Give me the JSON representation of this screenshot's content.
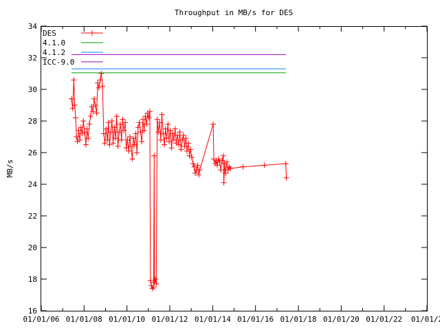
{
  "chart_data": {
    "type": "line",
    "title": "Throughput in MB/s for DES",
    "xlabel": "",
    "ylabel": "MB/s",
    "ylim": [
      16,
      34
    ],
    "xlim": [
      "2006-01-01",
      "2024-01-01"
    ],
    "y_ticks": [
      "16",
      "18",
      "20",
      "22",
      "24",
      "26",
      "28",
      "30",
      "32",
      "34"
    ],
    "x_ticks": [
      "01/01/06",
      "01/01/08",
      "01/01/10",
      "01/01/12",
      "01/01/14",
      "01/01/16",
      "01/01/18",
      "01/01/20",
      "01/01/22",
      "01/01/2"
    ],
    "legend_position": "top-left",
    "grid": false,
    "series": [
      {
        "name": "DES",
        "color": "#ff0000",
        "style": "linespoints",
        "points": [
          [
            "2007-06-01",
            29.4
          ],
          [
            "2007-06-20",
            28.8
          ],
          [
            "2007-07-10",
            30.6
          ],
          [
            "2007-07-25",
            29.0
          ],
          [
            "2007-08-10",
            28.2
          ],
          [
            "2007-08-25",
            27.0
          ],
          [
            "2007-09-10",
            26.7
          ],
          [
            "2007-10-01",
            27.4
          ],
          [
            "2007-10-20",
            26.8
          ],
          [
            "2007-11-10",
            27.6
          ],
          [
            "2007-12-01",
            27.2
          ],
          [
            "2007-12-20",
            28.0
          ],
          [
            "2008-01-10",
            27.3
          ],
          [
            "2008-02-01",
            26.5
          ],
          [
            "2008-02-20",
            27.5
          ],
          [
            "2008-03-10",
            26.9
          ],
          [
            "2008-04-01",
            27.8
          ],
          [
            "2008-04-20",
            28.3
          ],
          [
            "2008-05-10",
            28.9
          ],
          [
            "2008-06-01",
            28.6
          ],
          [
            "2008-06-20",
            29.4
          ],
          [
            "2008-07-10",
            29.0
          ],
          [
            "2008-08-01",
            28.5
          ],
          [
            "2008-08-20",
            30.4
          ],
          [
            "2008-09-10",
            30.1
          ],
          [
            "2008-10-01",
            30.6
          ],
          [
            "2008-10-20",
            31.0
          ],
          [
            "2008-11-10",
            30.2
          ],
          [
            "2008-12-01",
            27.2
          ],
          [
            "2008-12-20",
            26.6
          ],
          [
            "2009-01-10",
            27.5
          ],
          [
            "2009-02-01",
            26.8
          ],
          [
            "2009-02-20",
            27.9
          ],
          [
            "2009-03-10",
            26.5
          ],
          [
            "2009-04-01",
            27.3
          ],
          [
            "2009-04-20",
            28.0
          ],
          [
            "2009-05-10",
            26.6
          ],
          [
            "2009-06-01",
            27.6
          ],
          [
            "2009-06-20",
            26.9
          ],
          [
            "2009-07-10",
            28.3
          ],
          [
            "2009-08-01",
            26.4
          ],
          [
            "2009-08-20",
            27.3
          ],
          [
            "2009-09-10",
            27.8
          ],
          [
            "2009-10-01",
            26.8
          ],
          [
            "2009-10-20",
            28.1
          ],
          [
            "2009-11-10",
            27.4
          ],
          [
            "2009-12-01",
            27.9
          ],
          [
            "2009-12-20",
            26.3
          ],
          [
            "2010-01-10",
            26.8
          ],
          [
            "2010-02-01",
            26.1
          ],
          [
            "2010-02-20",
            27.0
          ],
          [
            "2010-03-10",
            26.4
          ],
          [
            "2010-04-01",
            25.6
          ],
          [
            "2010-04-20",
            26.9
          ],
          [
            "2010-05-10",
            26.5
          ],
          [
            "2010-06-01",
            27.2
          ],
          [
            "2010-06-20",
            26.0
          ],
          [
            "2010-07-10",
            27.6
          ],
          [
            "2010-08-01",
            27.9
          ],
          [
            "2010-08-20",
            27.3
          ],
          [
            "2010-09-10",
            26.7
          ],
          [
            "2010-10-01",
            28.1
          ],
          [
            "2010-10-20",
            27.4
          ],
          [
            "2010-11-10",
            28.3
          ],
          [
            "2010-12-01",
            27.8
          ],
          [
            "2010-12-20",
            28.5
          ],
          [
            "2011-01-10",
            28.2
          ],
          [
            "2011-01-25",
            28.6
          ],
          [
            "2011-02-05",
            17.9
          ],
          [
            "2011-02-20",
            17.6
          ],
          [
            "2011-03-10",
            17.4
          ],
          [
            "2011-04-01",
            17.5
          ],
          [
            "2011-04-10",
            25.8
          ],
          [
            "2011-04-15",
            17.8
          ],
          [
            "2011-05-01",
            18.0
          ],
          [
            "2011-05-15",
            17.7
          ],
          [
            "2011-06-01",
            28.1
          ],
          [
            "2011-06-20",
            27.3
          ],
          [
            "2011-07-10",
            27.9
          ],
          [
            "2011-08-01",
            26.8
          ],
          [
            "2011-08-20",
            28.4
          ],
          [
            "2011-09-10",
            27.2
          ],
          [
            "2011-10-01",
            26.5
          ],
          [
            "2011-10-20",
            27.5
          ],
          [
            "2011-11-10",
            26.9
          ],
          [
            "2011-12-01",
            27.8
          ],
          [
            "2011-12-20",
            26.7
          ],
          [
            "2012-01-10",
            27.4
          ],
          [
            "2012-02-01",
            26.3
          ],
          [
            "2012-02-20",
            27.2
          ],
          [
            "2012-03-10",
            26.8
          ],
          [
            "2012-04-01",
            27.5
          ],
          [
            "2012-04-20",
            26.6
          ],
          [
            "2012-05-10",
            27.1
          ],
          [
            "2012-06-01",
            26.5
          ],
          [
            "2012-06-20",
            27.3
          ],
          [
            "2012-07-10",
            26.2
          ],
          [
            "2012-08-01",
            26.8
          ],
          [
            "2012-08-20",
            27.1
          ],
          [
            "2012-09-10",
            26.4
          ],
          [
            "2012-10-01",
            26.9
          ],
          [
            "2012-10-20",
            26.1
          ],
          [
            "2012-11-10",
            26.6
          ],
          [
            "2012-12-01",
            25.8
          ],
          [
            "2012-12-20",
            26.2
          ],
          [
            "2013-01-10",
            25.7
          ],
          [
            "2013-02-01",
            25.3
          ],
          [
            "2013-02-20",
            25.1
          ],
          [
            "2013-03-10",
            24.7
          ],
          [
            "2013-04-01",
            24.9
          ],
          [
            "2013-04-20",
            25.2
          ],
          [
            "2013-05-10",
            24.6
          ],
          [
            "2013-05-25",
            24.9
          ],
          [
            "2014-01-10",
            27.8
          ],
          [
            "2014-01-20",
            25.6
          ],
          [
            "2014-02-10",
            25.3
          ],
          [
            "2014-03-01",
            25.5
          ],
          [
            "2014-03-20",
            25.2
          ],
          [
            "2014-04-10",
            25.6
          ],
          [
            "2014-05-01",
            25.4
          ],
          [
            "2014-05-20",
            24.9
          ],
          [
            "2014-06-10",
            25.5
          ],
          [
            "2014-07-01",
            25.8
          ],
          [
            "2014-07-10",
            24.1
          ],
          [
            "2014-07-25",
            25.3
          ],
          [
            "2014-08-10",
            24.7
          ],
          [
            "2014-09-01",
            25.4
          ],
          [
            "2014-09-20",
            24.9
          ],
          [
            "2014-10-10",
            25.1
          ],
          [
            "2014-10-30",
            25.0
          ],
          [
            "2015-06-01",
            25.1
          ],
          [
            "2016-06-01",
            25.2
          ],
          [
            "2017-06-01",
            25.3
          ],
          [
            "2017-06-10",
            24.4
          ]
        ]
      },
      {
        "name": "4.1.0",
        "color": "#00a000",
        "style": "line",
        "x": [
          "2007-06-01",
          "2017-06-01"
        ],
        "y": [
          31.05,
          31.05
        ]
      },
      {
        "name": "4.1.2",
        "color": "#0080ff",
        "style": "line",
        "x": [
          "2007-06-01",
          "2017-06-01"
        ],
        "y": [
          31.3,
          31.3
        ]
      },
      {
        "name": "ICC-9.0",
        "color": "#a000c0",
        "style": "line",
        "x": [
          "2007-06-01",
          "2017-06-01"
        ],
        "y": [
          32.2,
          32.2
        ]
      }
    ]
  }
}
